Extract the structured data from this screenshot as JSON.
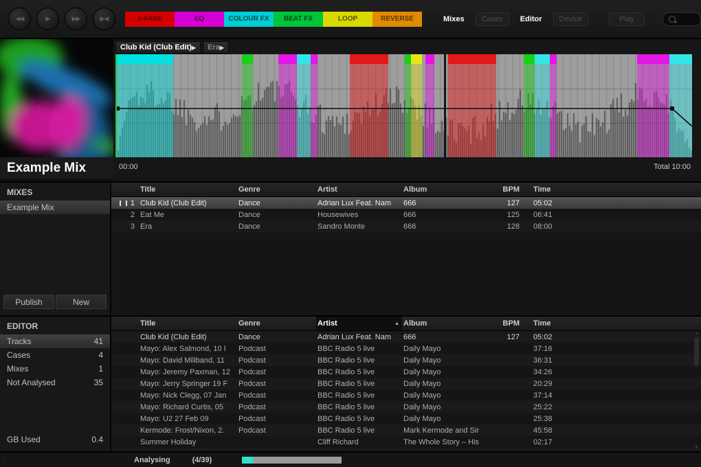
{
  "topbar": {
    "transport": [
      {
        "name": "rewind",
        "glyph": "◀◀"
      },
      {
        "name": "play",
        "glyph": "▶"
      },
      {
        "name": "fast-forward",
        "glyph": "▶▶"
      },
      {
        "name": "skip",
        "glyph": "▶◀"
      }
    ],
    "fx": [
      {
        "label": "X-FADE",
        "color": "#d40000",
        "fg": "#5e0000"
      },
      {
        "label": "EQ",
        "color": "#d400d4",
        "fg": "#540054"
      },
      {
        "label": "COLOUR FX",
        "color": "#00cdd4",
        "fg": "#004d52"
      },
      {
        "label": "BEAT FX",
        "color": "#00c43a",
        "fg": "#004d14"
      },
      {
        "label": "LOOP",
        "color": "#d9d900",
        "fg": "#525200"
      },
      {
        "label": "REVERSE",
        "color": "#e08a00",
        "fg": "#5e3600"
      }
    ],
    "tabs": [
      {
        "label": "Mixes",
        "active": true
      },
      {
        "label": "Cases",
        "active": false
      },
      {
        "label": "Editor",
        "active": true
      },
      {
        "label": "Device",
        "active": false
      }
    ],
    "play_label": "Play",
    "search": {
      "placeholder": ""
    }
  },
  "deck": {
    "artwork_title": "Example Mix",
    "track_headers": [
      {
        "title": "Club Kid (Club Edit)",
        "bright": true,
        "arrow": "▶"
      },
      {
        "title": "Era",
        "bright": false,
        "arrow": "▶"
      }
    ],
    "elapsed": "00:00",
    "total": "Total 10:00",
    "waveform": {
      "divider_at": 0.57,
      "volume_line_y": 0.525,
      "segments": [
        {
          "start": 0.0,
          "end": 0.1,
          "color": "#00e0e0"
        },
        {
          "start": 0.219,
          "end": 0.238,
          "color": "#17d117"
        },
        {
          "start": 0.282,
          "end": 0.315,
          "color": "#e317e3"
        },
        {
          "start": 0.315,
          "end": 0.339,
          "color": "#33e6e6"
        },
        {
          "start": 0.339,
          "end": 0.351,
          "color": "#e317e3"
        },
        {
          "start": 0.407,
          "end": 0.473,
          "color": "#e61717"
        },
        {
          "start": 0.502,
          "end": 0.512,
          "color": "#17d117"
        },
        {
          "start": 0.512,
          "end": 0.532,
          "color": "#e6e617"
        },
        {
          "start": 0.537,
          "end": 0.553,
          "color": "#e317e3"
        },
        {
          "start": 0.577,
          "end": 0.66,
          "color": "#e61717"
        },
        {
          "start": 0.708,
          "end": 0.727,
          "color": "#17d117"
        },
        {
          "start": 0.727,
          "end": 0.753,
          "color": "#33e6e6"
        },
        {
          "start": 0.753,
          "end": 0.765,
          "color": "#e317e3"
        },
        {
          "start": 0.905,
          "end": 0.961,
          "color": "#e317e3"
        },
        {
          "start": 0.961,
          "end": 1.0,
          "color": "#33e6e6"
        }
      ]
    }
  },
  "mixes_panel": {
    "title": "MIXES",
    "items": [
      {
        "label": "Example Mix",
        "selected": true
      }
    ],
    "publish_label": "Publish",
    "new_label": "New"
  },
  "mix_table": {
    "columns": {
      "title": "Title",
      "genre": "Genre",
      "artist": "Artist",
      "album": "Album",
      "bpm": "BPM",
      "time": "Time"
    },
    "rows": [
      {
        "num": "1",
        "title": "Club Kid (Club Edit)",
        "genre": "Dance",
        "artist": "Adrian Lux Feat. Nam",
        "album": "666",
        "bpm": "127",
        "time": "05:02",
        "selected": true,
        "playing": true
      },
      {
        "num": "2",
        "title": "Eat Me",
        "genre": "Dance",
        "artist": "Housewives",
        "album": "666",
        "bpm": "125",
        "time": "06:41"
      },
      {
        "num": "3",
        "title": "Era",
        "genre": "Dance",
        "artist": "Sandro Monte",
        "album": "666",
        "bpm": "128",
        "time": "08:00"
      }
    ]
  },
  "editor_panel": {
    "title": "EDITOR",
    "stats": [
      {
        "label": "Tracks",
        "value": "41",
        "selected": true
      },
      {
        "label": "Cases",
        "value": "4"
      },
      {
        "label": "Mixes",
        "value": "1"
      },
      {
        "label": "Not Analysed",
        "value": "35"
      }
    ],
    "footer_label": "GB Used",
    "footer_value": "0.4"
  },
  "library_table": {
    "columns": {
      "title": "Title",
      "genre": "Genre",
      "artist": "Artist",
      "album": "Album",
      "bpm": "BPM",
      "time": "Time"
    },
    "sort": {
      "column": "Artist",
      "direction": "asc",
      "glyph": "▲"
    },
    "rows": [
      {
        "title": "Club Kid (Club Edit)",
        "genre": "Dance",
        "artist": "Adrian Lux Feat. Nam",
        "album": "666",
        "bpm": "127",
        "time": "05:02",
        "bright": true
      },
      {
        "title": "Mayo: Alex Salmond, 10 I",
        "genre": "Podcast",
        "artist": "BBC Radio 5 live",
        "album": "Daily Mayo",
        "bpm": "",
        "time": "37:16"
      },
      {
        "title": "Mayo: David Miliband, 11",
        "genre": "Podcast",
        "artist": "BBC Radio 5 live",
        "album": "Daily Mayo",
        "bpm": "",
        "time": "36:31"
      },
      {
        "title": "Mayo: Jeremy Paxman, 12",
        "genre": "Podcast",
        "artist": "BBC Radio 5 live",
        "album": "Daily Mayo",
        "bpm": "",
        "time": "34:26"
      },
      {
        "title": "Mayo: Jerry Springer 19 F",
        "genre": "Podcast",
        "artist": "BBC Radio 5 live",
        "album": "Daily Mayo",
        "bpm": "",
        "time": "20:29"
      },
      {
        "title": "Mayo: Nick Clegg, 07 Jan",
        "genre": "Podcast",
        "artist": "BBC Radio 5 live",
        "album": "Daily Mayo",
        "bpm": "",
        "time": "37:14"
      },
      {
        "title": "Mayo: Richard Curtis, 05",
        "genre": "Podcast",
        "artist": "BBC Radio 5 live",
        "album": "Daily Mayo",
        "bpm": "",
        "time": "25:22"
      },
      {
        "title": "Mayo: U2 27 Feb 09",
        "genre": "Podcast",
        "artist": "BBC Radio 5 live",
        "album": "Daily Mayo",
        "bpm": "",
        "time": "25:38"
      },
      {
        "title": "Kermode: Frost/Nixon, 2.",
        "genre": "Podcast",
        "artist": "BBC Radio 5 live",
        "album": "Mark Kermode and Sir",
        "bpm": "",
        "time": "45:58"
      },
      {
        "title": "Summer Holiday",
        "genre": "",
        "artist": "Cliff Richard",
        "album": "The Whole Story – His",
        "bpm": "",
        "time": "02:17"
      },
      {
        "title": "",
        "genre": "",
        "artist": "",
        "album": "",
        "bpm": "",
        "time": ""
      }
    ]
  },
  "statusbar": {
    "label": "Analysing",
    "count": "(4/39)",
    "progress_pct": 11
  }
}
